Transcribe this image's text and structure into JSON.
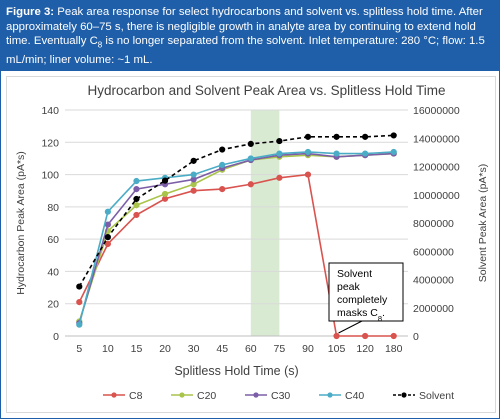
{
  "caption": {
    "lead": "Figure 3:",
    "text_a": " Peak area response for select hydrocarbons and solvent vs. splitless hold time. After approximately 60–75 s, there is negligible growth in analyte area by continuing to extend hold time. Eventually C",
    "sub": "8",
    "text_b": " is no longer separated from the solvent. Inlet temperature: 280 °C; flow: 1.5 mL/min; liner volume: ~1 mL."
  },
  "chart_data": {
    "type": "line",
    "title": "Hydrocarbon and Solvent Peak Area vs. Splitless Hold Time",
    "xlabel": "Splitless Hold Time (s)",
    "ylabel": "Hydrocarbon Peak Area (pA*s)",
    "y2label": "Solvent Peak Area (pA*s)",
    "categories": [
      "5",
      "10",
      "15",
      "20",
      "30",
      "45",
      "60",
      "75",
      "90",
      "105",
      "120",
      "180"
    ],
    "ylim": [
      0,
      140
    ],
    "yticks": [
      "0",
      "20",
      "40",
      "60",
      "80",
      "100",
      "120",
      "140"
    ],
    "y2lim": [
      0,
      16000000
    ],
    "y2ticks": [
      "0",
      "2000000",
      "4000000",
      "6000000",
      "8000000",
      "10000000",
      "12000000",
      "14000000",
      "16000000"
    ],
    "grid": true,
    "legend_position": "bottom",
    "highlight_band": {
      "from": "60",
      "to": "75",
      "color": "#d9ead3"
    },
    "annotation": {
      "lines": [
        "Solvent",
        "peak",
        "completely",
        "masks C"
      ],
      "sub": "8",
      "suffix": ".",
      "points_to": {
        "x": "105",
        "y": 0
      }
    },
    "series": [
      {
        "name": "C8",
        "axis": "left",
        "color": "#d9534f",
        "marker": "circle",
        "dashed": false,
        "values": [
          21,
          57,
          75,
          85,
          90,
          91,
          94,
          98,
          100,
          0,
          0,
          0
        ]
      },
      {
        "name": "C20",
        "axis": "left",
        "color": "#a9c44a",
        "marker": "circle",
        "dashed": false,
        "values": [
          9,
          65,
          81,
          88,
          94,
          103,
          109,
          111,
          112,
          111,
          112,
          113
        ]
      },
      {
        "name": "C30",
        "axis": "left",
        "color": "#7b5ea7",
        "marker": "circle",
        "dashed": false,
        "values": [
          8,
          69,
          91,
          94,
          97,
          104,
          109,
          112,
          113,
          111,
          112,
          113
        ]
      },
      {
        "name": "C40",
        "axis": "left",
        "color": "#4bacc6",
        "marker": "circle",
        "dashed": false,
        "values": [
          7,
          77,
          96,
          98,
          100,
          106,
          110,
          113,
          114,
          113,
          113,
          114
        ]
      },
      {
        "name": "Solvent",
        "axis": "right",
        "color": "#000000",
        "marker": "circle",
        "dashed": true,
        "values": [
          3500000,
          7000000,
          9700000,
          11000000,
          12400000,
          13200000,
          13600000,
          13800000,
          14100000,
          14100000,
          14100000,
          14200000
        ]
      }
    ]
  }
}
